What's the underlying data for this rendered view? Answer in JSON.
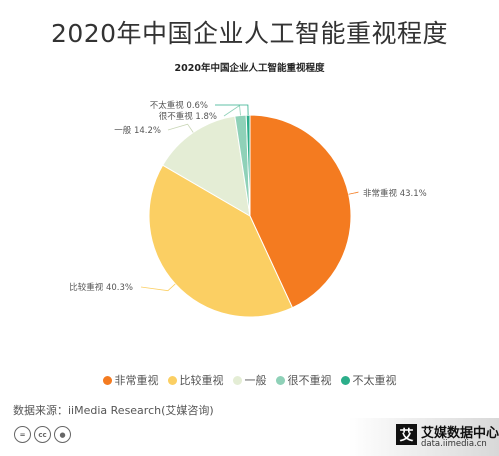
{
  "header": {
    "title": "2020年中国企业人工智能重视程度"
  },
  "chart_data": {
    "type": "pie",
    "title": "2020年中国企业人工智能重视程度",
    "slices": [
      {
        "label": "非常重视",
        "value": 43.1,
        "display": "非常重视 43.1%",
        "color": "#f47b20"
      },
      {
        "label": "比较重视",
        "value": 40.3,
        "display": "比较重视 40.3%",
        "color": "#fbcf63"
      },
      {
        "label": "一般",
        "value": 14.2,
        "display": "一般 14.2%",
        "color": "#e4edd5"
      },
      {
        "label": "很不重视",
        "value": 1.8,
        "display": "很不重视 1.8%",
        "color": "#8fd1b8"
      },
      {
        "label": "不太重视",
        "value": 0.6,
        "display": "不太重视 0.6%",
        "color": "#2cae8a"
      }
    ],
    "legend_position": "bottom"
  },
  "footer": {
    "source": "数据来源：iiMedia Research(艾媒咨询)",
    "brand_name": "艾媒数据中心",
    "brand_url": "data.iimedia.cn",
    "brand_logo": "艾",
    "license_icons": [
      "cc-license-icon",
      "cc-by-icon",
      "attribution-icon"
    ]
  }
}
